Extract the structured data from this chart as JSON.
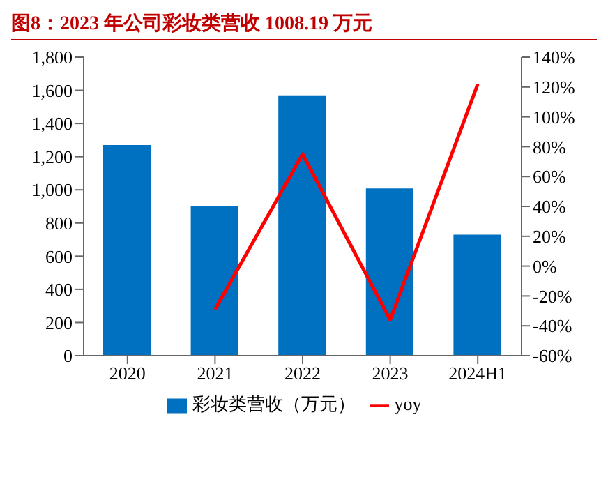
{
  "chart_data": {
    "type": "bar",
    "title": "图8：2023 年公司彩妆类营收 1008.19 万元",
    "categories": [
      "2020",
      "2021",
      "2022",
      "2023",
      "2024H1"
    ],
    "series": [
      {
        "name": "彩妆类营收（万元）",
        "color": "#0070c0",
        "values": [
          1270,
          900,
          1570,
          1008,
          730
        ]
      },
      {
        "name": "yoy",
        "type": "line",
        "axis": "y2",
        "color": "#ff0000",
        "values": [
          null,
          -29,
          75,
          -36,
          122
        ]
      }
    ],
    "ylim": [
      0,
      1800
    ],
    "yticks": [
      {
        "value": 0,
        "label": "0"
      },
      {
        "value": 200,
        "label": "200"
      },
      {
        "value": 400,
        "label": "400"
      },
      {
        "value": 600,
        "label": "600"
      },
      {
        "value": 800,
        "label": "800"
      },
      {
        "value": 1000,
        "label": "1,000"
      },
      {
        "value": 1200,
        "label": "1,200"
      },
      {
        "value": 1400,
        "label": "1,400"
      },
      {
        "value": 1600,
        "label": "1,600"
      },
      {
        "value": 1800,
        "label": "1,800"
      }
    ],
    "y2lim": [
      -60,
      140
    ],
    "y2ticks": [
      {
        "value": -60,
        "label": "-60%"
      },
      {
        "value": -40,
        "label": "-40%"
      },
      {
        "value": -20,
        "label": "-20%"
      },
      {
        "value": 0,
        "label": "0%"
      },
      {
        "value": 20,
        "label": "20%"
      },
      {
        "value": 40,
        "label": "40%"
      },
      {
        "value": 60,
        "label": "60%"
      },
      {
        "value": 80,
        "label": "80%"
      },
      {
        "value": 100,
        "label": "100%"
      },
      {
        "value": 120,
        "label": "120%"
      },
      {
        "value": 140,
        "label": "140%"
      }
    ],
    "grid": false,
    "legend": "bottom",
    "marker": "none",
    "line_style": "solid"
  }
}
